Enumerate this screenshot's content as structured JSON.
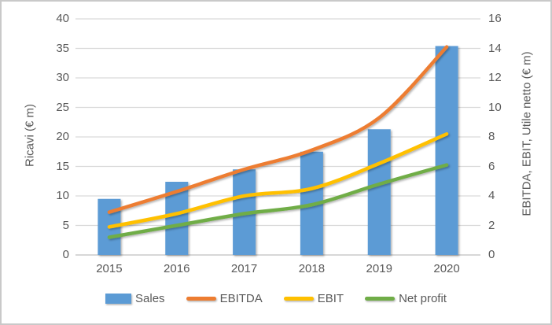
{
  "chart_data": {
    "type": "bar",
    "subtype": "combo-bar-line",
    "categories": [
      "2015",
      "2016",
      "2017",
      "2018",
      "2019",
      "2020"
    ],
    "bar_series": {
      "name": "Sales",
      "axis": "left",
      "color": "#5B9BD5",
      "values": [
        9.5,
        12.4,
        14.5,
        17.5,
        21.3,
        35.4
      ]
    },
    "line_series": [
      {
        "name": "EBITDA",
        "axis": "right",
        "color": "#ED7D31",
        "values": [
          2.9,
          4.3,
          5.8,
          7.1,
          9.3,
          14.1
        ]
      },
      {
        "name": "EBIT",
        "axis": "right",
        "color": "#FFC000",
        "values": [
          1.9,
          2.8,
          4.0,
          4.5,
          6.2,
          8.2
        ]
      },
      {
        "name": "Net profit",
        "axis": "right",
        "color": "#70AD47",
        "values": [
          1.2,
          2.0,
          2.8,
          3.4,
          4.8,
          6.1
        ]
      }
    ],
    "left_axis": {
      "title": "Ricavi (€ m)",
      "min": 0,
      "max": 40,
      "ticks": [
        40,
        35,
        30,
        25,
        20,
        15,
        10,
        5,
        0
      ]
    },
    "right_axis": {
      "title": "EBITDA, EBIT, Utile netto (€ m)",
      "min": 0,
      "max": 16,
      "ticks": [
        16,
        14,
        12,
        10,
        8,
        6,
        4,
        2,
        0
      ]
    },
    "legend": {
      "position": "bottom",
      "entries": [
        "Sales",
        "EBITDA",
        "EBIT",
        "Net profit"
      ]
    },
    "grid": true,
    "gridline_color": "#D9D9D9",
    "axis_line_color": "#BFBFBF",
    "text_color": "#595959"
  }
}
